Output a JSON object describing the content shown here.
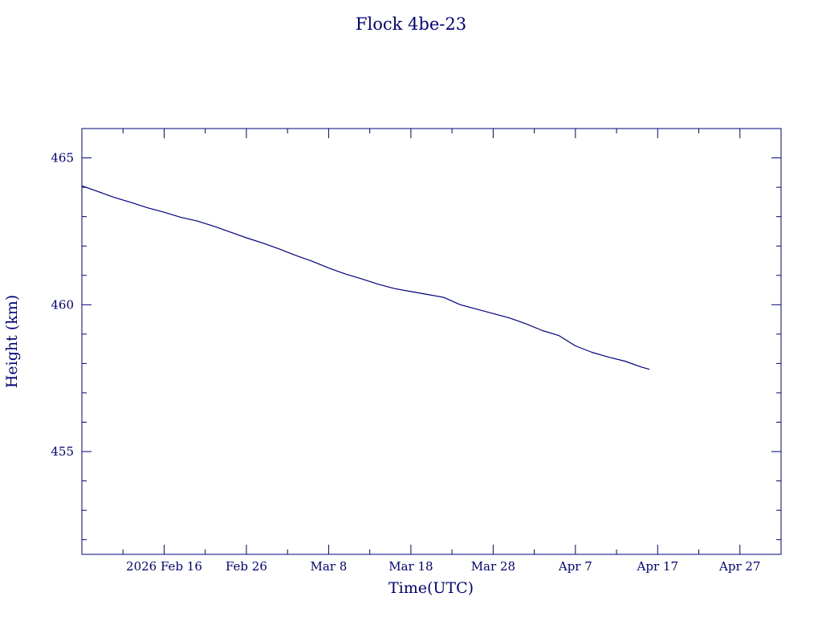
{
  "chart_data": {
    "type": "line",
    "title": "Flock 4be-23",
    "xlabel": "Time(UTC)",
    "ylabel": "Height (km)",
    "color": "#00007f",
    "xlim": [
      "2026-02-06",
      "2026-05-02"
    ],
    "ylim": [
      451.5,
      466
    ],
    "x_ticks": [
      {
        "date": "2026-02-16",
        "label": "2026 Feb 16"
      },
      {
        "date": "2026-02-26",
        "label": "Feb 26"
      },
      {
        "date": "2026-03-08",
        "label": "Mar  8"
      },
      {
        "date": "2026-03-18",
        "label": "Mar 18"
      },
      {
        "date": "2026-03-28",
        "label": "Mar 28"
      },
      {
        "date": "2026-04-07",
        "label": "Apr  7"
      },
      {
        "date": "2026-04-17",
        "label": "Apr 17"
      },
      {
        "date": "2026-04-27",
        "label": "Apr 27"
      }
    ],
    "y_ticks": [
      455,
      460,
      465
    ],
    "series": [
      {
        "points": [
          [
            "2026-02-06",
            464.05
          ],
          [
            "2026-02-08",
            463.85
          ],
          [
            "2026-02-10",
            463.65
          ],
          [
            "2026-02-12",
            463.48
          ],
          [
            "2026-02-14",
            463.3
          ],
          [
            "2026-02-16",
            463.15
          ],
          [
            "2026-02-18",
            462.98
          ],
          [
            "2026-02-20",
            462.85
          ],
          [
            "2026-02-22",
            462.68
          ],
          [
            "2026-02-24",
            462.48
          ],
          [
            "2026-02-26",
            462.28
          ],
          [
            "2026-02-28",
            462.1
          ],
          [
            "2026-03-02",
            461.9
          ],
          [
            "2026-03-04",
            461.68
          ],
          [
            "2026-03-06",
            461.48
          ],
          [
            "2026-03-08",
            461.25
          ],
          [
            "2026-03-10",
            461.05
          ],
          [
            "2026-03-12",
            460.88
          ],
          [
            "2026-03-14",
            460.7
          ],
          [
            "2026-03-16",
            460.55
          ],
          [
            "2026-03-18",
            460.45
          ],
          [
            "2026-03-20",
            460.35
          ],
          [
            "2026-03-22",
            460.25
          ],
          [
            "2026-03-24",
            460.0
          ],
          [
            "2026-03-26",
            459.85
          ],
          [
            "2026-03-28",
            459.7
          ],
          [
            "2026-03-30",
            459.55
          ],
          [
            "2026-04-01",
            459.35
          ],
          [
            "2026-04-03",
            459.12
          ],
          [
            "2026-04-05",
            458.95
          ],
          [
            "2026-04-07",
            458.6
          ],
          [
            "2026-04-09",
            458.38
          ],
          [
            "2026-04-11",
            458.22
          ],
          [
            "2026-04-13",
            458.08
          ],
          [
            "2026-04-15",
            457.88
          ],
          [
            "2026-04-16",
            457.8
          ]
        ]
      }
    ],
    "grid": false
  }
}
